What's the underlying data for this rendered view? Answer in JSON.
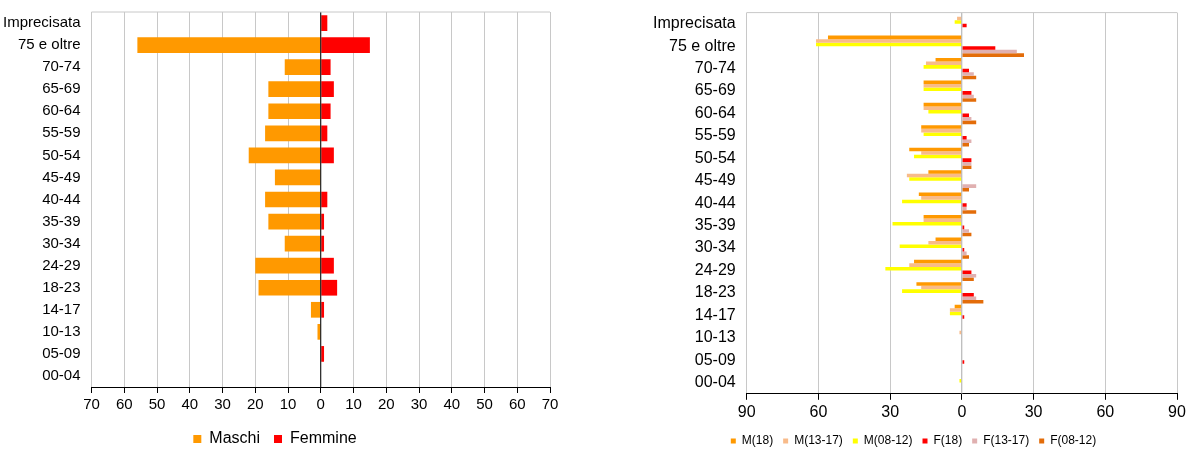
{
  "chart_data": [
    {
      "type": "bar",
      "orientation": "horizontal",
      "categories": [
        "Imprecisata",
        "75 e oltre",
        "70-74",
        "65-69",
        "60-64",
        "55-59",
        "50-54",
        "45-49",
        "40-44",
        "35-39",
        "30-34",
        "24-29",
        "18-23",
        "14-17",
        "10-13",
        "05-09",
        "00-04"
      ],
      "series": [
        {
          "name": "Maschi",
          "color": "#ff9900",
          "values": [
            0,
            -56,
            -11,
            -16,
            -16,
            -17,
            -22,
            -14,
            -17,
            -16,
            -11,
            -20,
            -19,
            -3,
            -1,
            0,
            0
          ]
        },
        {
          "name": "Femmine",
          "color": "#ff0000",
          "values": [
            2,
            15,
            3,
            4,
            3,
            2,
            4,
            0,
            2,
            1,
            1,
            4,
            5,
            1,
            0,
            1,
            0
          ]
        }
      ],
      "xlim": [
        -70,
        70
      ],
      "xticks": [
        {
          "value": -70,
          "label": "70"
        },
        {
          "value": -60,
          "label": "60"
        },
        {
          "value": -50,
          "label": "50"
        },
        {
          "value": -40,
          "label": "40"
        },
        {
          "value": -30,
          "label": "30"
        },
        {
          "value": -20,
          "label": "20"
        },
        {
          "value": -10,
          "label": "10"
        },
        0,
        10,
        20,
        30,
        40,
        50,
        60,
        70
      ],
      "grid": "x",
      "legend": "bottom",
      "stacked": true
    },
    {
      "type": "bar",
      "orientation": "horizontal",
      "categories": [
        "Imprecisata",
        "75 e oltre",
        "70-74",
        "65-69",
        "60-64",
        "55-59",
        "50-54",
        "45-49",
        "40-44",
        "35-39",
        "30-34",
        "24-29",
        "18-23",
        "14-17",
        "10-13",
        "05-09",
        "00-04"
      ],
      "series": [
        {
          "name": "M(18)",
          "color": "#ff9900",
          "values": [
            0,
            -56,
            -11,
            -16,
            -16,
            -17,
            -22,
            -14,
            -18,
            -16,
            -11,
            -20,
            -19,
            -3,
            0,
            0,
            0
          ]
        },
        {
          "name": "M(13-17)",
          "color": "#f8bb8a",
          "values": [
            -2,
            -61,
            -15,
            -16,
            -16,
            -17,
            -17,
            -23,
            -17,
            -16,
            -14,
            -22,
            -17,
            -5,
            -1,
            0,
            0
          ]
        },
        {
          "name": "M(08-12)",
          "color": "#ffff00",
          "values": [
            -3,
            -61,
            -16,
            -16,
            -14,
            -16,
            -20,
            -22,
            -25,
            -29,
            -26,
            -32,
            -25,
            -5,
            0,
            0,
            -1
          ]
        },
        {
          "name": "F(18)",
          "color": "#ff0000",
          "values": [
            2,
            14,
            3,
            4,
            3,
            2,
            4,
            0,
            2,
            1,
            1,
            4,
            5,
            1,
            0,
            1,
            0
          ]
        },
        {
          "name": "F(13-17)",
          "color": "#e0b0b0",
          "values": [
            0,
            23,
            5,
            5,
            4,
            4,
            4,
            6,
            2,
            3,
            2,
            6,
            6,
            0,
            0,
            0,
            0
          ]
        },
        {
          "name": "F(08-12)",
          "color": "#e36c09",
          "values": [
            0,
            26,
            6,
            6,
            6,
            3,
            4,
            3,
            6,
            4,
            3,
            5,
            9,
            0,
            0,
            0,
            0
          ]
        }
      ],
      "xlim": [
        -90,
        90
      ],
      "xticks": [
        {
          "value": -90,
          "label": "90"
        },
        {
          "value": -60,
          "label": "60"
        },
        {
          "value": -30,
          "label": "30"
        },
        0,
        30,
        60,
        90
      ],
      "grid": "x",
      "legend": "bottom"
    }
  ]
}
